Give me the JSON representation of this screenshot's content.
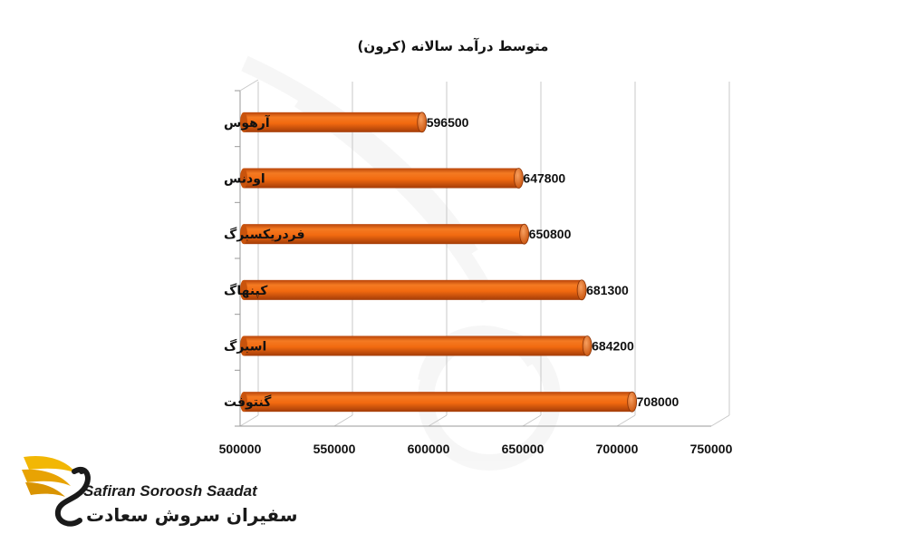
{
  "chart_data": {
    "type": "bar",
    "orientation": "horizontal",
    "title": "متوسط درآمد سالانه (کرون)",
    "categories": [
      "آرهوس",
      "اودنس",
      "فردریکسبرگ",
      "کپنهاگ",
      "اسبرگ",
      "گنتوفت"
    ],
    "values": [
      596500,
      647800,
      650800,
      681300,
      684200,
      708000
    ],
    "data_labels": [
      "596500",
      "647800",
      "650800",
      "681300",
      "684200",
      "708000"
    ],
    "xlim": [
      500000,
      750000
    ],
    "x_ticks": [
      "500000",
      "550000",
      "600000",
      "650000",
      "700000",
      "750000"
    ],
    "bar_color": "#f26a10",
    "grid": true,
    "legend": "none",
    "style": "3d-cylinder"
  },
  "brand": {
    "name_en": "Safiran Soroosh Saadat",
    "name_fa": "سفیران سروش سعادت",
    "accent_color": "#f2b705",
    "icon": "swan-logo-icon"
  }
}
